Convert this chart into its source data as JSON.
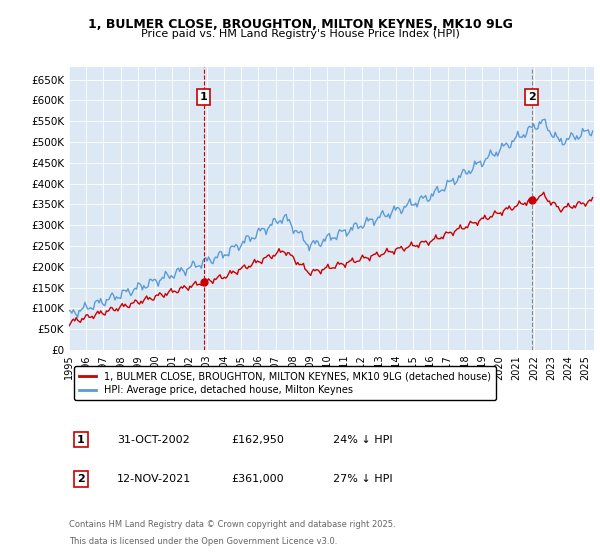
{
  "title_line1": "1, BULMER CLOSE, BROUGHTON, MILTON KEYNES, MK10 9LG",
  "title_line2": "Price paid vs. HM Land Registry's House Price Index (HPI)",
  "ylim": [
    0,
    680000
  ],
  "yticks": [
    0,
    50000,
    100000,
    150000,
    200000,
    250000,
    300000,
    350000,
    400000,
    450000,
    500000,
    550000,
    600000,
    650000
  ],
  "ytick_labels": [
    "£0",
    "£50K",
    "£100K",
    "£150K",
    "£200K",
    "£250K",
    "£300K",
    "£350K",
    "£400K",
    "£450K",
    "£500K",
    "£550K",
    "£600K",
    "£650K"
  ],
  "hpi_color": "#5b9bd5",
  "price_color": "#cc0000",
  "chart_bg": "#dce9f5",
  "marker1_date": 2002.83,
  "marker2_date": 2021.87,
  "marker1_price": 162950,
  "marker2_price": 361000,
  "legend_label1": "1, BULMER CLOSE, BROUGHTON, MILTON KEYNES, MK10 9LG (detached house)",
  "legend_label2": "HPI: Average price, detached house, Milton Keynes",
  "footer1": "Contains HM Land Registry data © Crown copyright and database right 2025.",
  "footer2": "This data is licensed under the Open Government Licence v3.0.",
  "table_row1": [
    "1",
    "31-OCT-2002",
    "£162,950",
    "24% ↓ HPI"
  ],
  "table_row2": [
    "2",
    "12-NOV-2021",
    "£361,000",
    "27% ↓ HPI"
  ],
  "background_color": "#ffffff",
  "grid_color": "#aaaacc"
}
